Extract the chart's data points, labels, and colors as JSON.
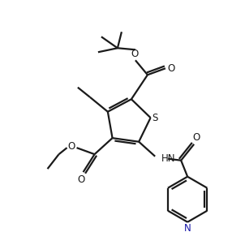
{
  "bg_color": "#ffffff",
  "line_color": "#1a1a1a",
  "n_color": "#1a1aaa",
  "bond_lw": 1.6,
  "s_text": "S",
  "n_text": "N",
  "o_text": "O",
  "hn_text": "HN"
}
